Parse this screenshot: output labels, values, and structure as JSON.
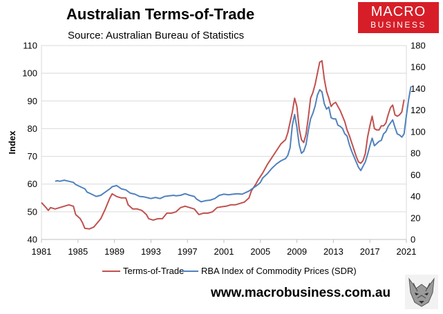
{
  "header": {
    "title": "Australian Terms-of-Trade",
    "subtitle": "Source: Australian Bureau of Statistics"
  },
  "logo": {
    "line1": "MACRO",
    "line2": "BUSINESS",
    "color": "#d71e28"
  },
  "footer": {
    "website": "www.macrobusiness.com.au"
  },
  "chart_data": {
    "type": "line",
    "ylabel": "Index",
    "xlim": [
      1981,
      2021
    ],
    "ylim_left": [
      40,
      110
    ],
    "ylim_right": [
      0,
      180
    ],
    "x_ticks": [
      "1981",
      "1985",
      "1989",
      "1993",
      "1997",
      "2001",
      "2005",
      "2009",
      "2013",
      "2017",
      "2021"
    ],
    "y_ticks_left": [
      "40",
      "50",
      "60",
      "70",
      "80",
      "90",
      "100",
      "110"
    ],
    "y_ticks_right": [
      "0",
      "20",
      "40",
      "60",
      "80",
      "100",
      "120",
      "140",
      "160",
      "180"
    ],
    "grid": "horizontal",
    "legend_position": "bottom",
    "series": [
      {
        "name": "Terms-of-Trade",
        "axis": "left",
        "color": "#c0504d",
        "points": [
          [
            1981.0,
            53.3
          ],
          [
            1981.5,
            51.5
          ],
          [
            1981.75,
            50.5
          ],
          [
            1982.0,
            51.5
          ],
          [
            1982.5,
            51.0
          ],
          [
            1983.0,
            51.5
          ],
          [
            1983.5,
            52.0
          ],
          [
            1984.0,
            52.5
          ],
          [
            1984.5,
            52.0
          ],
          [
            1984.75,
            49.0
          ],
          [
            1985.25,
            47.5
          ],
          [
            1985.5,
            46.0
          ],
          [
            1985.75,
            44.0
          ],
          [
            1986.25,
            43.8
          ],
          [
            1986.75,
            44.5
          ],
          [
            1987.0,
            45.5
          ],
          [
            1987.5,
            47.5
          ],
          [
            1988.0,
            51.0
          ],
          [
            1988.5,
            55.0
          ],
          [
            1988.75,
            56.5
          ],
          [
            1989.25,
            55.5
          ],
          [
            1989.75,
            55.0
          ],
          [
            1990.25,
            55.0
          ],
          [
            1990.5,
            52.5
          ],
          [
            1991.0,
            51.0
          ],
          [
            1991.5,
            51.0
          ],
          [
            1992.0,
            50.5
          ],
          [
            1992.5,
            49.0
          ],
          [
            1992.75,
            47.5
          ],
          [
            1993.25,
            47.0
          ],
          [
            1993.75,
            47.5
          ],
          [
            1994.25,
            47.5
          ],
          [
            1994.75,
            49.5
          ],
          [
            1995.25,
            49.5
          ],
          [
            1995.75,
            50.0
          ],
          [
            1996.25,
            51.5
          ],
          [
            1996.75,
            52.0
          ],
          [
            1997.25,
            51.5
          ],
          [
            1997.75,
            51.0
          ],
          [
            1998.25,
            49.0
          ],
          [
            1998.75,
            49.5
          ],
          [
            1999.25,
            49.5
          ],
          [
            1999.75,
            50.0
          ],
          [
            2000.25,
            51.5
          ],
          [
            2000.75,
            51.8
          ],
          [
            2001.25,
            52.0
          ],
          [
            2001.75,
            52.5
          ],
          [
            2002.25,
            52.5
          ],
          [
            2002.75,
            53.0
          ],
          [
            2003.25,
            53.5
          ],
          [
            2003.75,
            55.0
          ],
          [
            2004.0,
            57.5
          ],
          [
            2004.5,
            60.0
          ],
          [
            2004.75,
            61.5
          ],
          [
            2005.25,
            64.0
          ],
          [
            2005.75,
            67.0
          ],
          [
            2006.25,
            69.5
          ],
          [
            2006.75,
            72.0
          ],
          [
            2007.25,
            74.5
          ],
          [
            2007.75,
            76.0
          ],
          [
            2008.0,
            78.5
          ],
          [
            2008.5,
            86.0
          ],
          [
            2008.75,
            91.0
          ],
          [
            2009.0,
            88.0
          ],
          [
            2009.25,
            80.0
          ],
          [
            2009.5,
            76.0
          ],
          [
            2009.75,
            75.0
          ],
          [
            2010.0,
            78.0
          ],
          [
            2010.25,
            84.0
          ],
          [
            2010.5,
            91.0
          ],
          [
            2010.75,
            93.0
          ],
          [
            2011.0,
            96.0
          ],
          [
            2011.25,
            100.0
          ],
          [
            2011.5,
            104.0
          ],
          [
            2011.75,
            104.5
          ],
          [
            2012.0,
            98.0
          ],
          [
            2012.25,
            93.5
          ],
          [
            2012.5,
            91.0
          ],
          [
            2012.75,
            88.0
          ],
          [
            2013.0,
            89.0
          ],
          [
            2013.25,
            89.5
          ],
          [
            2013.5,
            88.0
          ],
          [
            2013.75,
            86.5
          ],
          [
            2014.0,
            84.5
          ],
          [
            2014.25,
            82.5
          ],
          [
            2014.5,
            79.5
          ],
          [
            2014.75,
            77.5
          ],
          [
            2015.0,
            75.0
          ],
          [
            2015.25,
            72.5
          ],
          [
            2015.5,
            70.0
          ],
          [
            2015.75,
            68.0
          ],
          [
            2016.0,
            67.5
          ],
          [
            2016.25,
            68.5
          ],
          [
            2016.5,
            71.0
          ],
          [
            2016.75,
            77.0
          ],
          [
            2017.0,
            81.0
          ],
          [
            2017.25,
            84.5
          ],
          [
            2017.5,
            80.0
          ],
          [
            2017.75,
            79.5
          ],
          [
            2018.0,
            79.5
          ],
          [
            2018.25,
            81.0
          ],
          [
            2018.5,
            81.0
          ],
          [
            2018.75,
            82.0
          ],
          [
            2019.0,
            85.0
          ],
          [
            2019.25,
            87.5
          ],
          [
            2019.5,
            88.5
          ],
          [
            2019.75,
            85.0
          ],
          [
            2020.0,
            84.5
          ],
          [
            2020.25,
            85.0
          ],
          [
            2020.5,
            86.0
          ],
          [
            2020.75,
            90.5
          ]
        ]
      },
      {
        "name": "RBA Index of Commodity Prices (SDR)",
        "axis": "right",
        "color": "#4f81bd",
        "points": [
          [
            1982.5,
            54.0
          ],
          [
            1982.75,
            54.5
          ],
          [
            1983.0,
            54.0
          ],
          [
            1983.5,
            55.0
          ],
          [
            1984.0,
            54.0
          ],
          [
            1984.5,
            53.0
          ],
          [
            1984.75,
            51.0
          ],
          [
            1985.25,
            49.0
          ],
          [
            1985.75,
            47.0
          ],
          [
            1986.0,
            44.0
          ],
          [
            1986.5,
            42.0
          ],
          [
            1987.0,
            40.0
          ],
          [
            1987.5,
            41.0
          ],
          [
            1988.0,
            44.0
          ],
          [
            1988.5,
            47.0
          ],
          [
            1988.75,
            49.0
          ],
          [
            1989.25,
            50.0
          ],
          [
            1989.75,
            47.0
          ],
          [
            1990.25,
            46.0
          ],
          [
            1990.75,
            43.0
          ],
          [
            1991.25,
            42.0
          ],
          [
            1991.75,
            40.0
          ],
          [
            1992.25,
            39.5
          ],
          [
            1992.75,
            38.5
          ],
          [
            1993.0,
            38.0
          ],
          [
            1993.5,
            39.0
          ],
          [
            1994.0,
            38.0
          ],
          [
            1994.5,
            40.0
          ],
          [
            1995.0,
            40.5
          ],
          [
            1995.5,
            41.0
          ],
          [
            1995.75,
            40.5
          ],
          [
            1996.25,
            41.0
          ],
          [
            1996.75,
            42.5
          ],
          [
            1997.25,
            41.0
          ],
          [
            1997.75,
            40.0
          ],
          [
            1998.0,
            37.5
          ],
          [
            1998.5,
            35.0
          ],
          [
            1999.0,
            36.0
          ],
          [
            1999.5,
            36.5
          ],
          [
            2000.0,
            38.0
          ],
          [
            2000.5,
            41.0
          ],
          [
            2001.0,
            42.0
          ],
          [
            2001.5,
            41.5
          ],
          [
            2002.0,
            42.0
          ],
          [
            2002.5,
            42.5
          ],
          [
            2003.0,
            42.0
          ],
          [
            2003.5,
            44.0
          ],
          [
            2003.75,
            45.0
          ],
          [
            2004.25,
            48.0
          ],
          [
            2004.75,
            51.0
          ],
          [
            2005.0,
            53.0
          ],
          [
            2005.25,
            57.0
          ],
          [
            2005.75,
            61.0
          ],
          [
            2006.25,
            66.0
          ],
          [
            2006.75,
            70.0
          ],
          [
            2007.25,
            73.0
          ],
          [
            2007.75,
            75.0
          ],
          [
            2008.0,
            78.0
          ],
          [
            2008.25,
            85.0
          ],
          [
            2008.5,
            106.0
          ],
          [
            2008.75,
            116.0
          ],
          [
            2009.0,
            104.0
          ],
          [
            2009.25,
            88.0
          ],
          [
            2009.5,
            80.0
          ],
          [
            2009.75,
            82.0
          ],
          [
            2010.0,
            88.0
          ],
          [
            2010.25,
            101.0
          ],
          [
            2010.5,
            112.0
          ],
          [
            2010.75,
            117.0
          ],
          [
            2011.0,
            124.0
          ],
          [
            2011.25,
            134.0
          ],
          [
            2011.5,
            139.0
          ],
          [
            2011.75,
            137.0
          ],
          [
            2012.0,
            126.0
          ],
          [
            2012.25,
            121.0
          ],
          [
            2012.5,
            123.0
          ],
          [
            2012.75,
            113.0
          ],
          [
            2013.0,
            112.0
          ],
          [
            2013.25,
            112.0
          ],
          [
            2013.5,
            106.0
          ],
          [
            2013.75,
            105.0
          ],
          [
            2014.0,
            103.0
          ],
          [
            2014.25,
            98.0
          ],
          [
            2014.5,
            96.0
          ],
          [
            2014.75,
            88.0
          ],
          [
            2015.0,
            82.0
          ],
          [
            2015.25,
            77.0
          ],
          [
            2015.5,
            72.0
          ],
          [
            2015.75,
            67.0
          ],
          [
            2016.0,
            64.0
          ],
          [
            2016.25,
            68.0
          ],
          [
            2016.5,
            72.0
          ],
          [
            2016.75,
            79.0
          ],
          [
            2017.0,
            87.0
          ],
          [
            2017.25,
            94.0
          ],
          [
            2017.5,
            87.0
          ],
          [
            2017.75,
            89.0
          ],
          [
            2018.0,
            91.0
          ],
          [
            2018.25,
            92.0
          ],
          [
            2018.5,
            98.0
          ],
          [
            2018.75,
            100.0
          ],
          [
            2019.0,
            105.0
          ],
          [
            2019.25,
            108.0
          ],
          [
            2019.5,
            111.0
          ],
          [
            2019.75,
            104.0
          ],
          [
            2020.0,
            98.0
          ],
          [
            2020.25,
            97.0
          ],
          [
            2020.5,
            95.0
          ],
          [
            2020.75,
            98.0
          ],
          [
            2021.0,
            115.0
          ],
          [
            2021.25,
            130.0
          ],
          [
            2021.5,
            142.0
          ]
        ]
      }
    ]
  }
}
